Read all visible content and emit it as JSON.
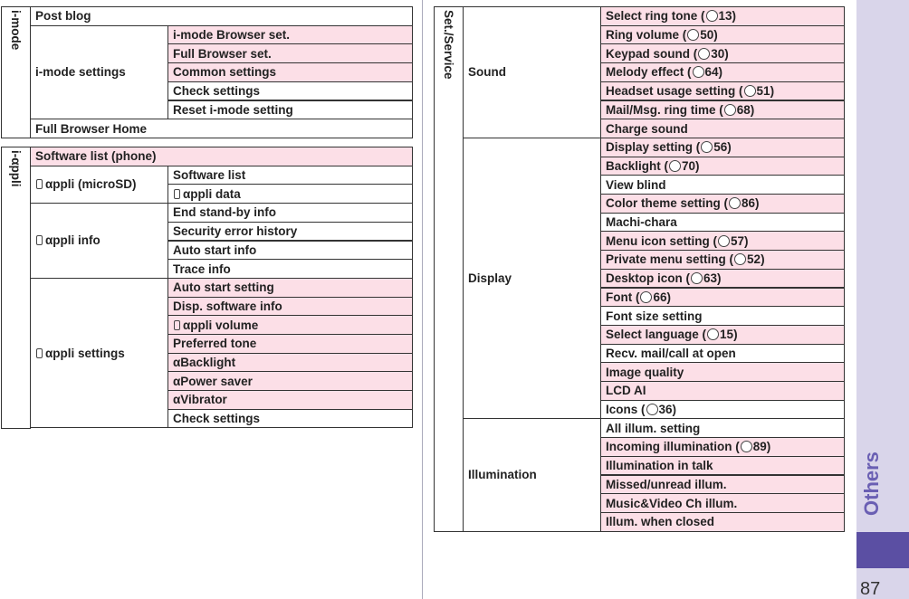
{
  "tables": [
    {
      "section": "i-mode",
      "groups": [
        {
          "label": "Post blog",
          "highlight": false,
          "items": []
        },
        {
          "label": "i-mode settings",
          "items": [
            {
              "text": "i-mode Browser set.",
              "highlight": true
            },
            {
              "text": "Full Browser set.",
              "highlight": true
            },
            {
              "text": "Common settings",
              "highlight": true
            },
            {
              "text": "Check settings",
              "highlight": false
            },
            {
              "text": "Reset i-mode setting",
              "highlight": false
            }
          ]
        },
        {
          "label": "Full Browser Home",
          "highlight": false,
          "items": []
        }
      ]
    },
    {
      "section": "i-αppli",
      "groups": [
        {
          "label": "Software list (phone)",
          "highlight": true,
          "items": []
        },
        {
          "label": "αppli (microSD)",
          "appli_icon": true,
          "items": [
            {
              "text": "Software list",
              "highlight": false
            },
            {
              "text": "αppli data",
              "highlight": false,
              "appli_icon": true
            }
          ]
        },
        {
          "label": "αppli info",
          "appli_icon": true,
          "items": [
            {
              "text": "End stand-by info",
              "highlight": false
            },
            {
              "text": "Security error history",
              "highlight": false
            },
            {
              "text": "Auto start info",
              "highlight": false
            },
            {
              "text": "Trace info",
              "highlight": false
            }
          ]
        },
        {
          "label": "αppli settings",
          "appli_icon": true,
          "items": [
            {
              "text": "Auto start setting",
              "highlight": true
            },
            {
              "text": "Disp. software info",
              "highlight": true
            },
            {
              "text": "αppli volume",
              "highlight": true,
              "appli_icon": true
            },
            {
              "text": "Preferred tone",
              "highlight": true
            },
            {
              "text": "αBacklight",
              "highlight": true
            },
            {
              "text": "αPower saver",
              "highlight": true
            },
            {
              "text": "αVibrator",
              "highlight": true
            },
            {
              "text": "Check settings",
              "highlight": false
            }
          ]
        }
      ]
    },
    {
      "section": "Set./Service",
      "groups": [
        {
          "label": "Sound",
          "items": [
            {
              "text": "Select ring tone (",
              "ref": "13)",
              "highlight": true
            },
            {
              "text": "Ring volume (",
              "ref": "50)",
              "highlight": true
            },
            {
              "text": "Keypad sound (",
              "ref": "30)",
              "highlight": true
            },
            {
              "text": "Melody effect (",
              "ref": "64)",
              "highlight": true
            },
            {
              "text": "Headset usage setting (",
              "ref": "51)",
              "highlight": true
            },
            {
              "text": "Mail/Msg. ring time (",
              "ref": "68)",
              "highlight": true
            },
            {
              "text": "Charge sound",
              "highlight": true
            }
          ]
        },
        {
          "label": "Display",
          "items": [
            {
              "text": "Display setting (",
              "ref": "56)",
              "highlight": true
            },
            {
              "text": "Backlight (",
              "ref": "70)",
              "highlight": true
            },
            {
              "text": "View blind",
              "highlight": false
            },
            {
              "text": "Color theme setting (",
              "ref": "86)",
              "highlight": true
            },
            {
              "text": "Machi-chara",
              "highlight": false
            },
            {
              "text": "Menu icon setting (",
              "ref": "57)",
              "highlight": true
            },
            {
              "text": "Private menu setting (",
              "ref": "52)",
              "highlight": true
            },
            {
              "text": "Desktop icon (",
              "ref": "63)",
              "highlight": true
            },
            {
              "text": "Font (",
              "ref": "66)",
              "highlight": true
            },
            {
              "text": "Font size setting",
              "highlight": false
            },
            {
              "text": "Select language (",
              "ref": "15)",
              "highlight": true
            },
            {
              "text": "Recv. mail/call at open",
              "highlight": false
            },
            {
              "text": "Image quality",
              "highlight": true
            },
            {
              "text": "LCD AI",
              "highlight": true
            },
            {
              "text": "Icons (",
              "ref": "36)",
              "highlight": false
            }
          ]
        },
        {
          "label": "Illumination",
          "items": [
            {
              "text": "All illum. setting",
              "highlight": false
            },
            {
              "text": "Incoming illumination (",
              "ref": "89)",
              "highlight": true
            },
            {
              "text": "Illumination in talk",
              "highlight": true
            },
            {
              "text": "Missed/unread illum.",
              "highlight": true
            },
            {
              "text": "Music&Video Ch illum.",
              "highlight": true
            },
            {
              "text": "Illum. when closed",
              "highlight": true
            }
          ]
        }
      ]
    }
  ],
  "side_tab": "Others",
  "page_number": "87"
}
